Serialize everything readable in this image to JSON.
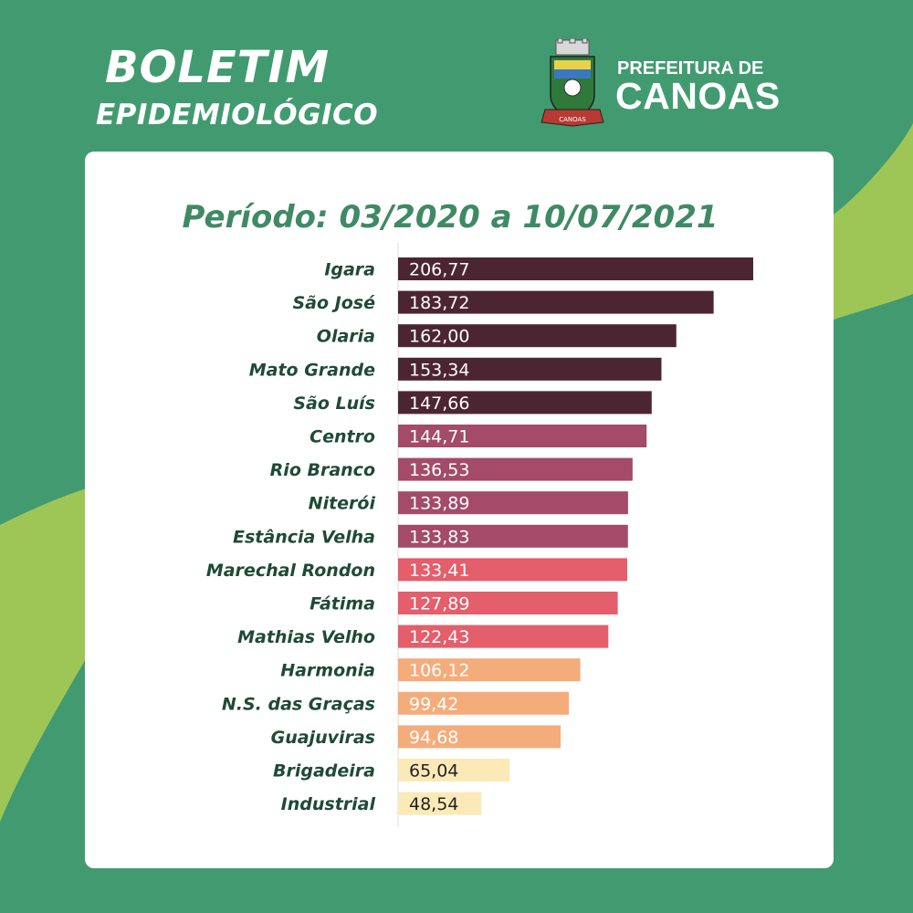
{
  "header": {
    "title_line1": "BOLETIM",
    "title_line2": "EPIDEMIOLÓGICO",
    "org_line1": "PREFEITURA DE",
    "org_line2": "CANOAS",
    "crest_text": "CANOAS"
  },
  "colors": {
    "background": "#429b70",
    "accent_light_green": "#9ec657",
    "card": "#ffffff",
    "period_text": "#3f8a64",
    "label_text": "#1e4a36"
  },
  "chart_data": {
    "type": "bar",
    "orientation": "horizontal",
    "title": "Período: 03/2020 a 10/07/2021",
    "xlabel": "",
    "ylabel": "",
    "xlim": [
      0,
      210
    ],
    "grid": false,
    "categories": [
      "Igara",
      "São José",
      "Olaria",
      "Mato Grande",
      "São Luís",
      "Centro",
      "Rio Branco",
      "Niterói",
      "Estância Velha",
      "Marechal Rondon",
      "Fátima",
      "Mathias Velho",
      "Harmonia",
      "N.S. das Graças",
      "Guajuviras",
      "Brigadeira",
      "Industrial"
    ],
    "values": [
      206.77,
      183.72,
      162.0,
      153.34,
      147.66,
      144.71,
      136.53,
      133.89,
      133.83,
      133.41,
      127.89,
      122.43,
      106.12,
      99.42,
      94.68,
      65.04,
      48.54
    ],
    "value_labels": [
      "206,77",
      "183,72",
      "162,00",
      "153,34",
      "147,66",
      "144,71",
      "136,53",
      "133,89",
      "133,83",
      "133,41",
      "127,89",
      "122,43",
      "106,12",
      "99,42",
      "94,68",
      "65,04",
      "48,54"
    ],
    "bar_colors": [
      "#4c2533",
      "#4c2533",
      "#4c2533",
      "#4c2533",
      "#4c2533",
      "#a34b68",
      "#a34b68",
      "#a34b68",
      "#a34b68",
      "#e45e6b",
      "#e45e6b",
      "#e45e6b",
      "#f5ac7b",
      "#f5ac7b",
      "#f5ac7b",
      "#fbeab8",
      "#fbeab8"
    ],
    "label_colors": [
      "#ffffff",
      "#ffffff",
      "#ffffff",
      "#ffffff",
      "#ffffff",
      "#ffffff",
      "#ffffff",
      "#ffffff",
      "#ffffff",
      "#ffffff",
      "#ffffff",
      "#ffffff",
      "#ffffff",
      "#ffffff",
      "#ffffff",
      "#222222",
      "#222222"
    ]
  }
}
